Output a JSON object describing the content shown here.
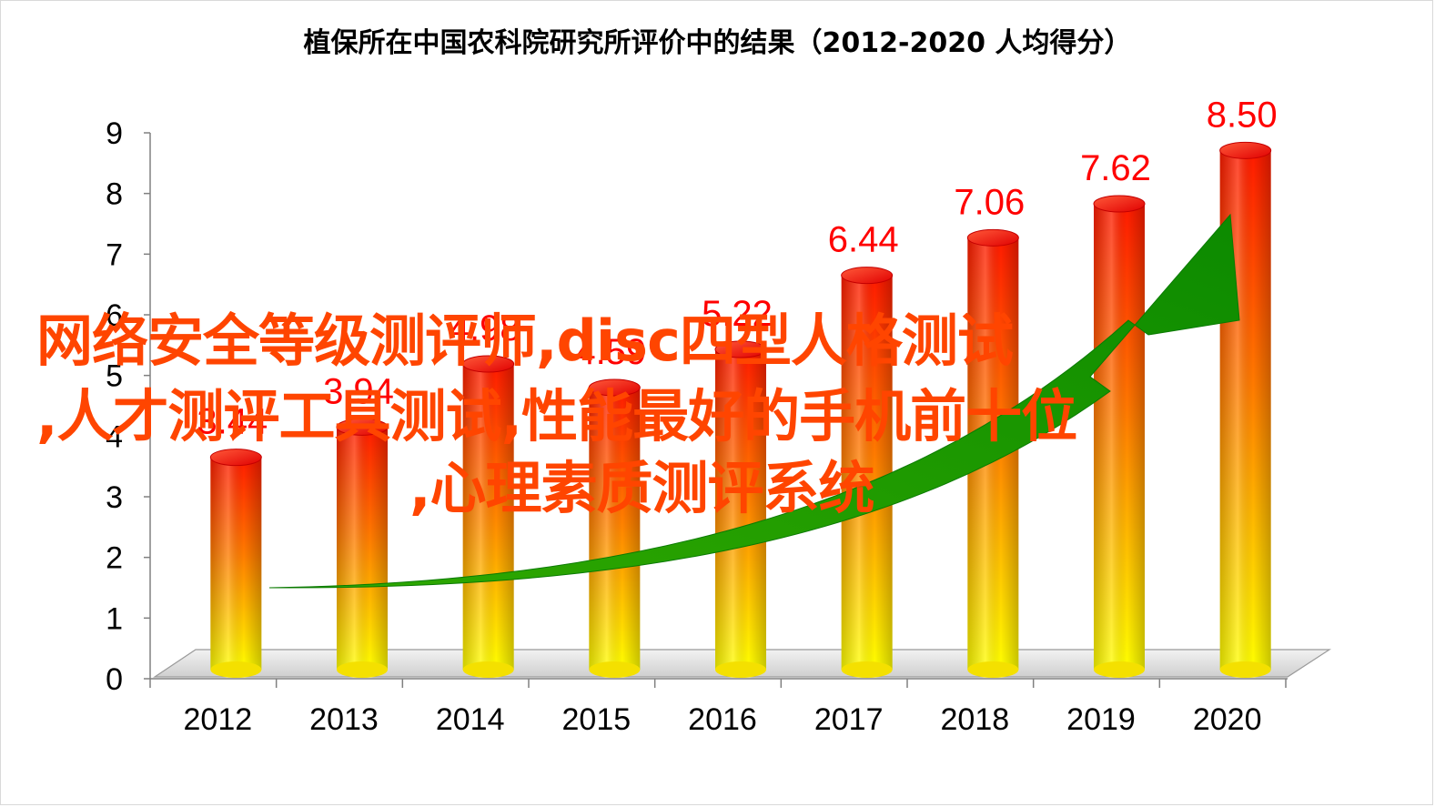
{
  "chart_data": {
    "type": "bar",
    "title": "植保所在中国农科院研究所评价中的结果（2012-2020  人均得分）",
    "categories": [
      "2012",
      "2013",
      "2014",
      "2015",
      "2016",
      "2017",
      "2018",
      "2019",
      "2020"
    ],
    "values": [
      3.44,
      3.94,
      4.98,
      4.59,
      5.22,
      6.44,
      7.06,
      7.62,
      8.5
    ],
    "data_labels": [
      "3.44",
      "3.94",
      "4.98",
      "4.59",
      "5.22",
      "6.44",
      "7.06",
      "7.62",
      "8.50"
    ],
    "y_ticks": [
      "0",
      "1",
      "2",
      "3",
      "4",
      "5",
      "6",
      "7",
      "8",
      "9"
    ],
    "ylim": [
      0,
      9
    ],
    "xlabel": "",
    "ylabel": "",
    "grid": false,
    "style": "3d-cylinder",
    "bar_gradient": {
      "top": "#ff1a00",
      "bottom": "#ffff00"
    },
    "label_color": "#ff0000",
    "trend_arrow": {
      "color": "#1a9a00",
      "direction": "up-right"
    }
  },
  "overlay": {
    "line1": "网络安全等级测评师,disc四型人格测试",
    "line2": ",人才测评工具测试,性能最好的手机前十位",
    "line3": ",心理素质测评系统",
    "color": "#ff4500"
  }
}
